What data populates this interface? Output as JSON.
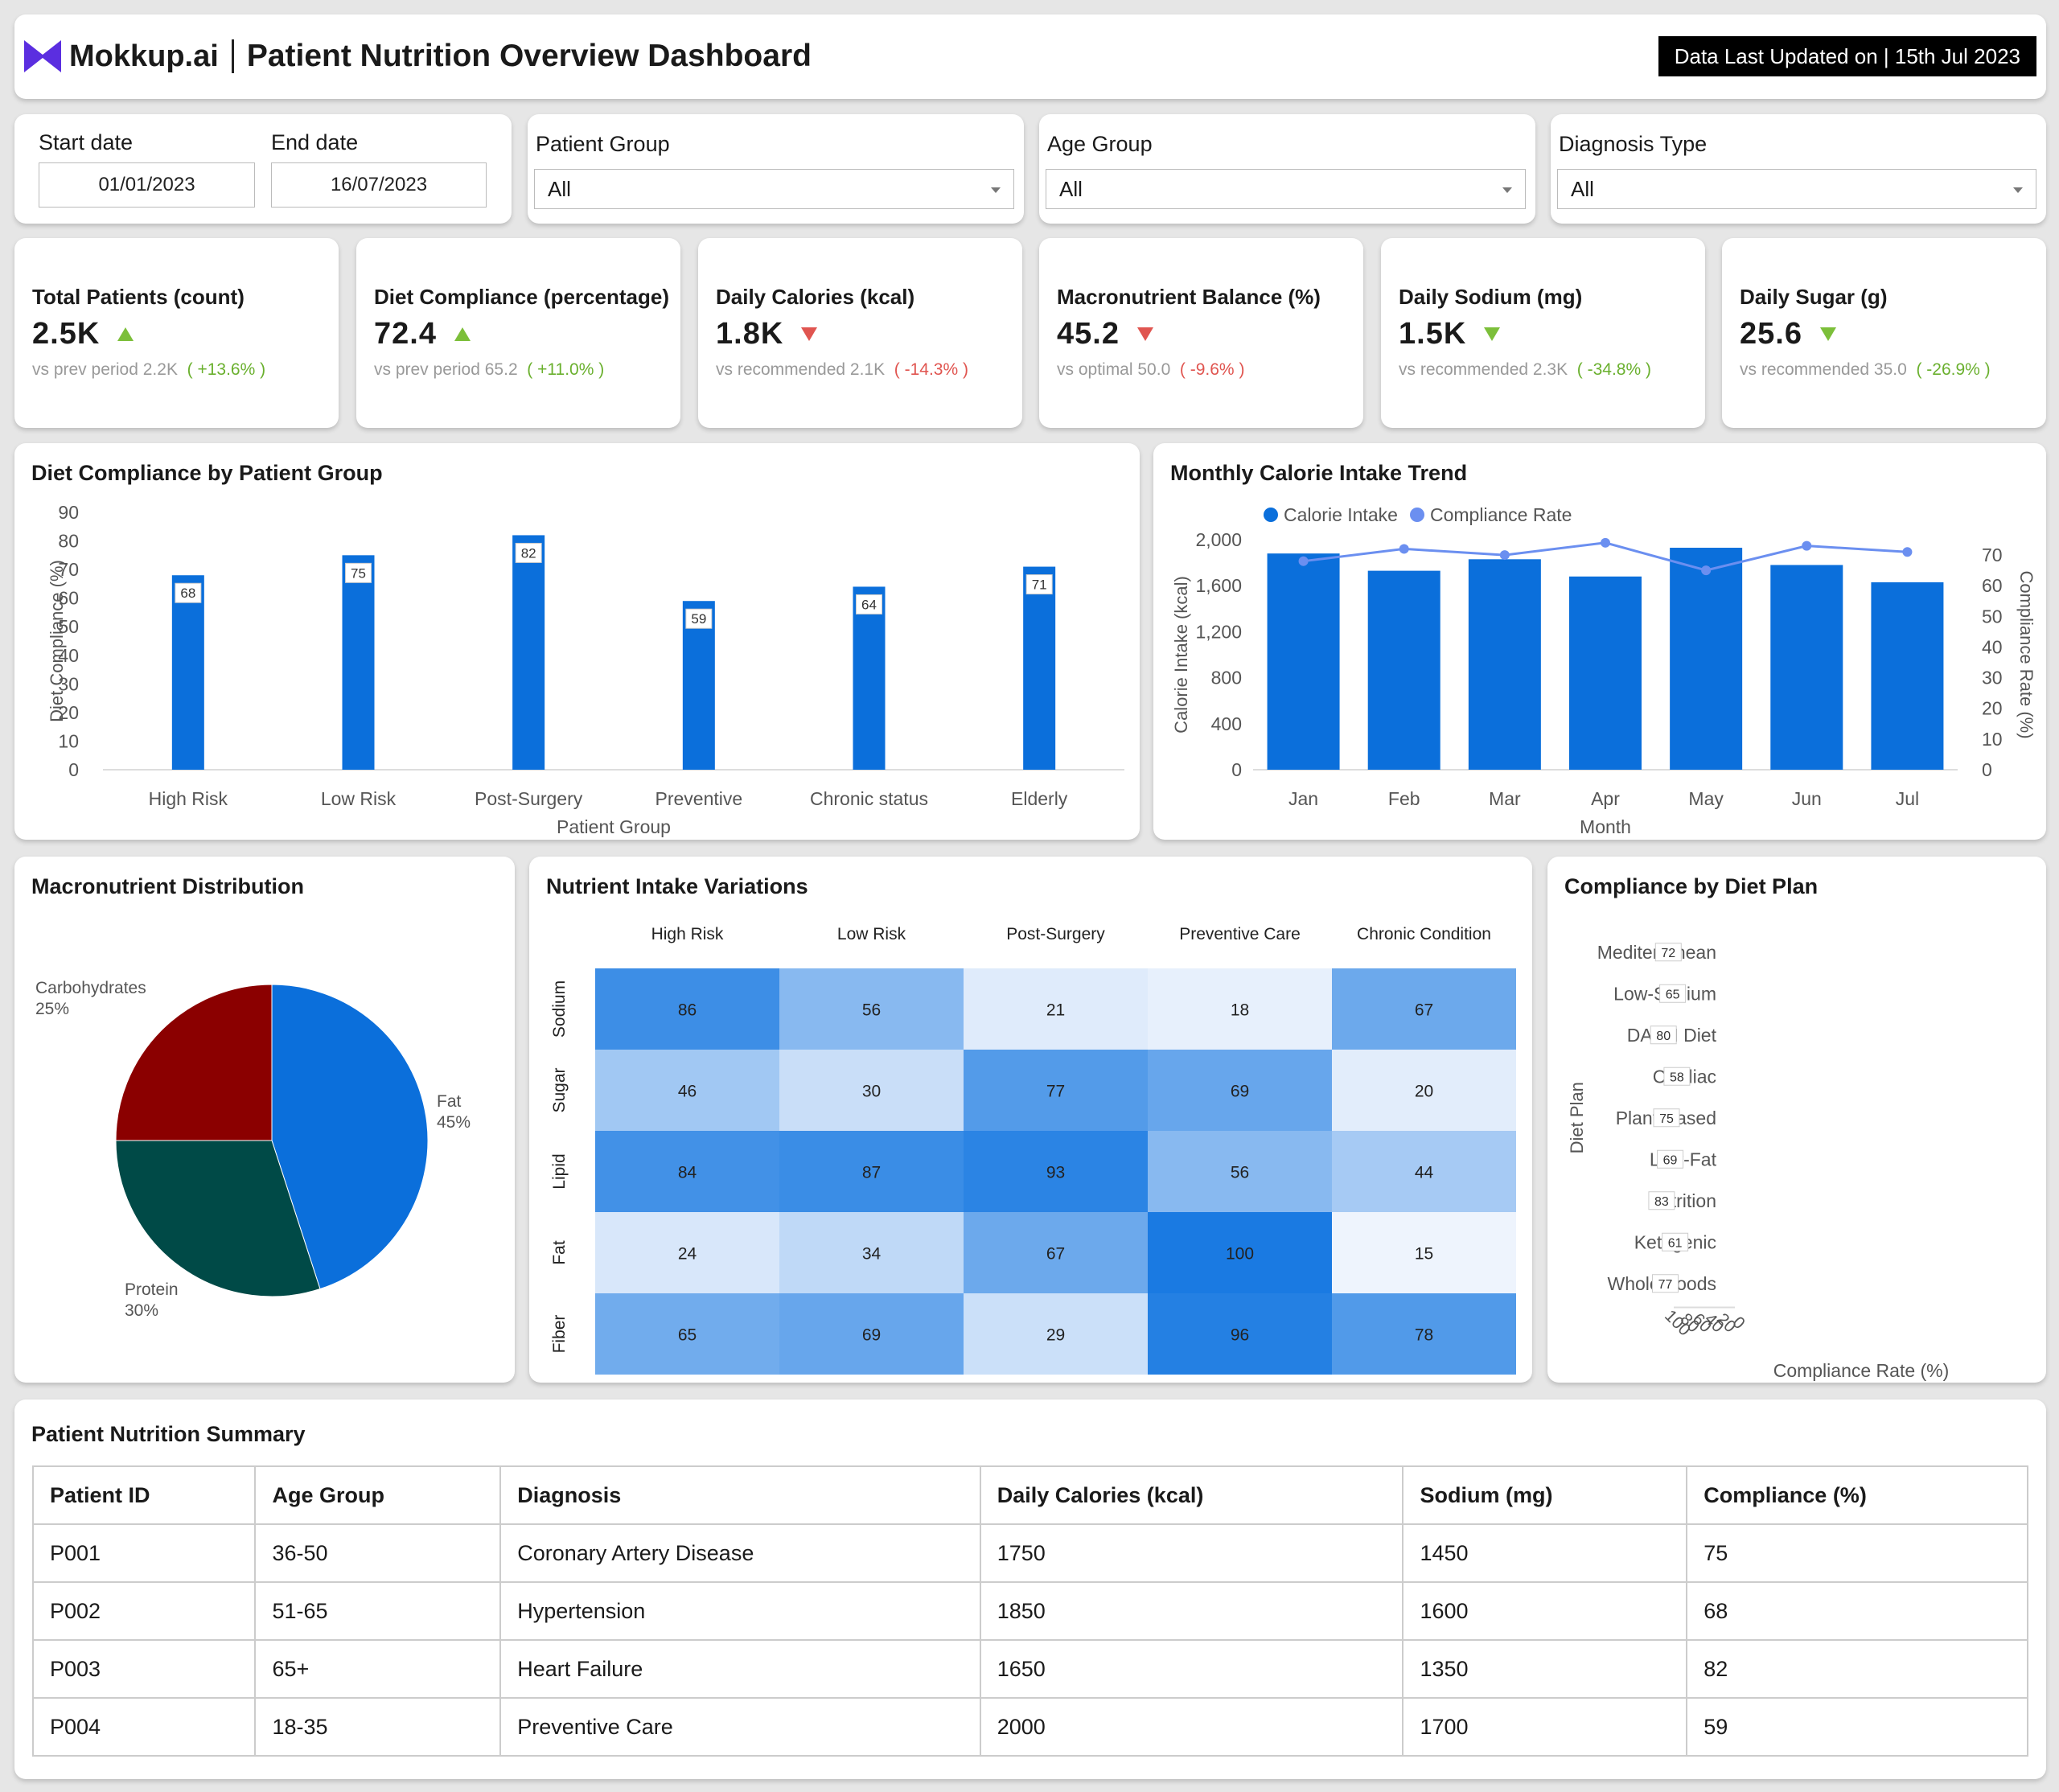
{
  "header": {
    "brand": "Mokkup.ai",
    "title": "Patient Nutrition Overview Dashboard",
    "updated": "Data Last Updated on | 15th Jul 2023",
    "brand_color": "#5b2ee0"
  },
  "filters": {
    "start_label": "Start date",
    "start_value": "01/01/2023",
    "end_label": "End date",
    "end_value": "16/07/2023",
    "patient_group_label": "Patient Group",
    "patient_group_value": "All",
    "age_group_label": "Age Group",
    "age_group_value": "All",
    "diagnosis_label": "Diagnosis Type",
    "diagnosis_value": "All"
  },
  "kpis": [
    {
      "label": "Total Patients (count)",
      "value": "2.5K",
      "trend": "up",
      "cmp_label": "vs prev period",
      "cmp_value": "2.2K",
      "delta": "( +13.6% )",
      "good": true
    },
    {
      "label": "Diet Compliance (percentage)",
      "value": "72.4",
      "trend": "up",
      "cmp_label": "vs prev period",
      "cmp_value": "65.2",
      "delta": "( +11.0% )",
      "good": true
    },
    {
      "label": "Daily Calories (kcal)",
      "value": "1.8K",
      "trend": "down",
      "cmp_label": "vs recommended",
      "cmp_value": "2.1K",
      "delta": "( -14.3% )",
      "good": false
    },
    {
      "label": "Macronutrient Balance (%)",
      "value": "45.2",
      "trend": "down",
      "cmp_label": "vs optimal",
      "cmp_value": "50.0",
      "delta": "( -9.6% )",
      "good": false
    },
    {
      "label": "Daily Sodium (mg)",
      "value": "1.5K",
      "trend": "down",
      "cmp_label": "vs recommended",
      "cmp_value": "2.3K",
      "delta": "( -34.8% )",
      "good": true
    },
    {
      "label": "Daily Sugar (g)",
      "value": "25.6",
      "trend": "down",
      "cmp_label": "vs recommended",
      "cmp_value": "35.0",
      "delta": "( -26.9% )",
      "good": true
    }
  ],
  "chart_titles": {
    "compliance_group": "Diet Compliance by Patient Group",
    "calorie_trend": "Monthly Calorie Intake Trend",
    "macro": "Macronutrient Distribution",
    "heatmap": "Nutrient Intake Variations",
    "diet_plan": "Compliance by Diet Plan"
  },
  "chart_data": [
    {
      "type": "bar",
      "categories": [
        "High Risk",
        "Low Risk",
        "Post-Surgery",
        "Preventive",
        "Chronic status",
        "Elderly"
      ],
      "values": [
        68,
        75,
        82,
        59,
        64,
        71
      ],
      "xlabel": "Patient Group",
      "ylabel": "Diet Compliance (%)",
      "ylim": [
        0,
        90
      ],
      "yticks": [
        0,
        10,
        20,
        30,
        40,
        50,
        60,
        70,
        80,
        90
      ],
      "color": "#0b6fdb"
    },
    {
      "type": "bar",
      "categories": [
        "Jan",
        "Feb",
        "Mar",
        "Apr",
        "May",
        "Jun",
        "Jul"
      ],
      "series": [
        {
          "name": "Calorie Intake",
          "axis": "left",
          "kind": "bar",
          "values": [
            1880,
            1730,
            1830,
            1680,
            1930,
            1780,
            1630
          ],
          "color": "#0b6fdb"
        },
        {
          "name": "Compliance Rate",
          "axis": "right",
          "kind": "line",
          "values": [
            68,
            72,
            70,
            74,
            65,
            73,
            71
          ],
          "color": "#6b8ff0"
        }
      ],
      "xlabel": "Month",
      "ylabel": "Calorie Intake (kcal)",
      "y2label": "Compliance Rate (%)",
      "ylim": [
        0,
        2000
      ],
      "y2lim": [
        0,
        75
      ],
      "yticks": [
        0,
        400,
        800,
        1200,
        1600,
        2000
      ],
      "ytick_labels": [
        "0",
        "400",
        "800",
        "1,200",
        "1,600",
        "2,000"
      ],
      "y2ticks": [
        0,
        10,
        20,
        30,
        40,
        50,
        60,
        70
      ],
      "legend": "top-left"
    },
    {
      "type": "pie",
      "slices": [
        {
          "label": "Fat",
          "value": 45,
          "pct": "45%",
          "color": "#0b6fdb"
        },
        {
          "label": "Protein",
          "value": 30,
          "pct": "30%",
          "color": "#004a47"
        },
        {
          "label": "Carbohydrates",
          "value": 25,
          "pct": "25%",
          "color": "#8b0000"
        }
      ]
    },
    {
      "type": "heatmap",
      "columns": [
        "High Risk",
        "Low Risk",
        "Post-Surgery",
        "Preventive Care",
        "Chronic Condition"
      ],
      "rows": [
        "Sodium",
        "Sugar",
        "Lipid",
        "Fat",
        "Fiber"
      ],
      "values": [
        [
          86,
          56,
          21,
          18,
          67
        ],
        [
          46,
          30,
          77,
          69,
          20
        ],
        [
          84,
          87,
          93,
          56,
          44
        ],
        [
          24,
          34,
          67,
          100,
          15
        ],
        [
          65,
          69,
          29,
          96,
          78
        ]
      ],
      "vmin": 15,
      "vmax": 100,
      "low_color": "#eef4fd",
      "high_color": "#1a7ae2"
    },
    {
      "type": "bar",
      "orientation": "horizontal",
      "categories": [
        "Mediterranean",
        "Low-Sodium",
        "DASH Diet",
        "Cardiac",
        "Plant-Based",
        "Low-Fat",
        "Nutrition",
        "Ketogenic",
        "Whole Foods"
      ],
      "values": [
        72,
        65,
        80,
        58,
        75,
        69,
        83,
        61,
        77
      ],
      "xlabel": "Compliance Rate (%)",
      "ylabel": "Diet Plan",
      "xlim": [
        0,
        100
      ],
      "xticks": [
        0,
        20,
        40,
        60,
        80,
        100
      ],
      "color": "#0b6fdb"
    }
  ],
  "table": {
    "title": "Patient Nutrition Summary",
    "headers": [
      "Patient ID",
      "Age Group",
      "Diagnosis",
      "Daily Calories (kcal)",
      "Sodium (mg)",
      "Compliance (%)"
    ],
    "rows": [
      [
        "P001",
        "36-50",
        "Coronary Artery Disease",
        "1750",
        "1450",
        "75"
      ],
      [
        "P002",
        "51-65",
        "Hypertension",
        "1850",
        "1600",
        "68"
      ],
      [
        "P003",
        "65+",
        "Heart Failure",
        "1650",
        "1350",
        "82"
      ],
      [
        "P004",
        "18-35",
        "Preventive Care",
        "2000",
        "1700",
        "59"
      ]
    ]
  }
}
